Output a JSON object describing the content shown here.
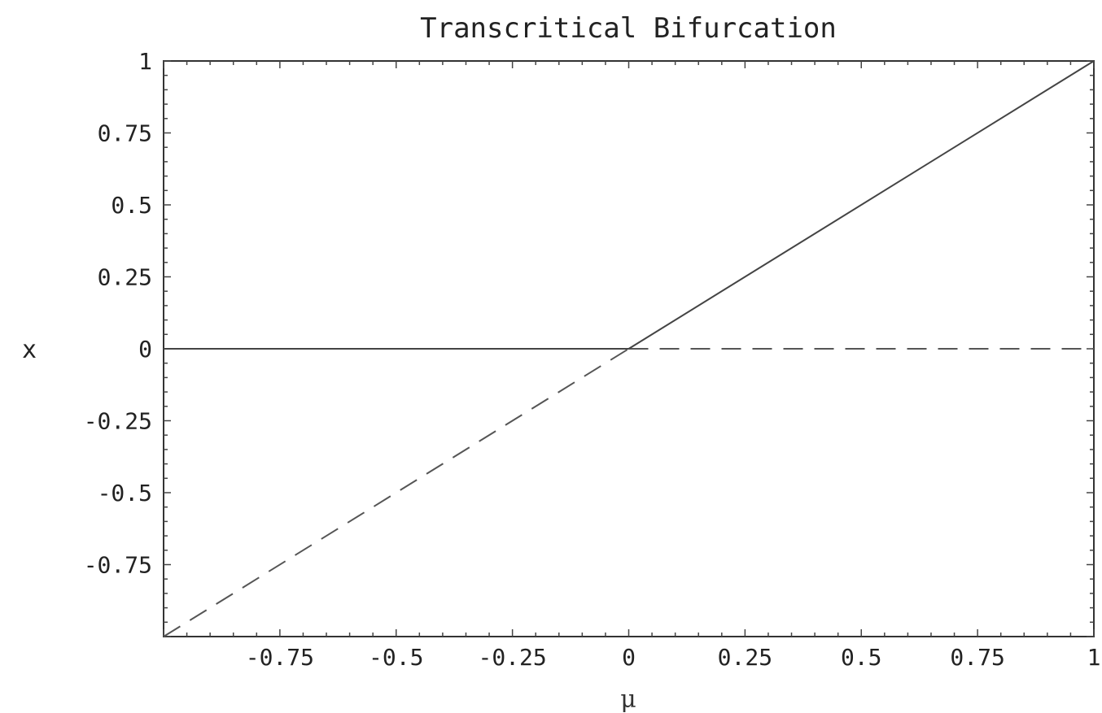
{
  "chart_data": {
    "type": "line",
    "title": "Transcritical Bifurcation",
    "xlabel": "μ",
    "ylabel": "x",
    "xlim": [
      -1,
      1
    ],
    "ylim": [
      -1,
      1
    ],
    "x_ticks": [
      -0.75,
      -0.5,
      -0.25,
      0,
      0.25,
      0.5,
      0.75,
      1
    ],
    "x_tick_labels": [
      "-0.75",
      "-0.5",
      "-0.25",
      "0",
      "0.25",
      "0.5",
      "0.75",
      "1"
    ],
    "y_ticks": [
      -0.75,
      -0.5,
      -0.25,
      0,
      0.25,
      0.5,
      0.75,
      1
    ],
    "y_tick_labels": [
      "-0.75",
      "-0.5",
      "-0.25",
      "0",
      "0.25",
      "0.5",
      "0.75",
      "1"
    ],
    "grid": false,
    "series": [
      {
        "style": "solid",
        "color": "#444444",
        "x": [
          -1,
          0
        ],
        "y": [
          0,
          0
        ]
      },
      {
        "style": "dashed",
        "color": "#555555",
        "x": [
          0,
          1
        ],
        "y": [
          0,
          0
        ]
      },
      {
        "style": "solid",
        "color": "#444444",
        "x": [
          0,
          1
        ],
        "y": [
          0,
          1
        ]
      },
      {
        "style": "dashed",
        "color": "#555555",
        "x": [
          -1,
          0
        ],
        "y": [
          -1,
          0
        ]
      }
    ]
  }
}
